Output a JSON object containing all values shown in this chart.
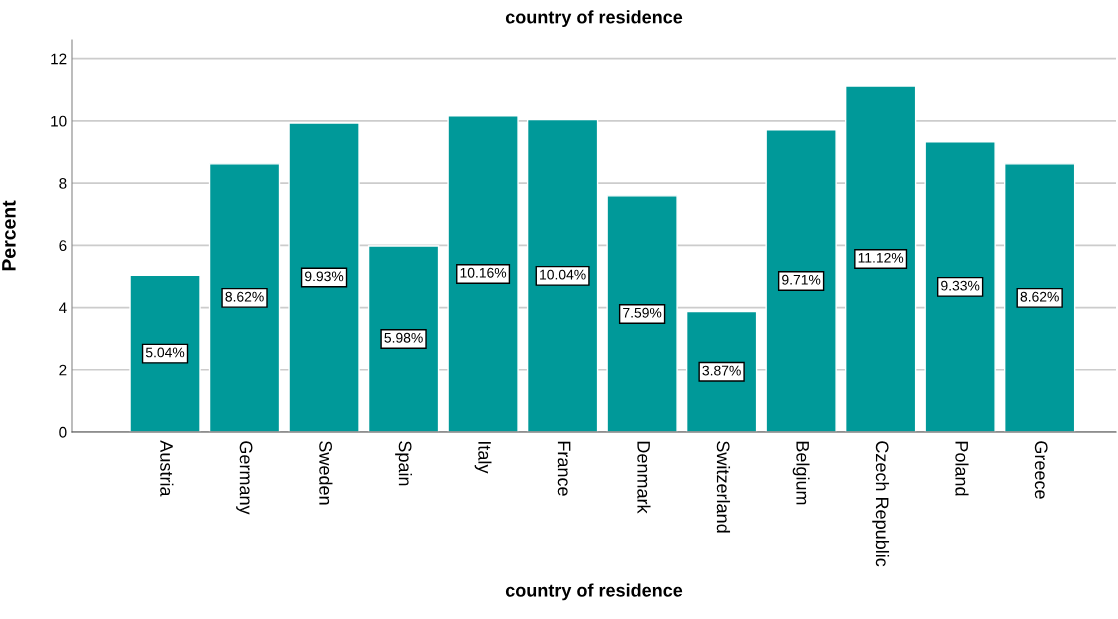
{
  "chart_data": {
    "type": "bar",
    "title": "country of residence",
    "xlabel": "country of residence",
    "ylabel": "Percent",
    "categories": [
      "Austria",
      "Germany",
      "Sweden",
      "Spain",
      "Italy",
      "France",
      "Denmark",
      "Switzerland",
      "Belgium",
      "Czech Republic",
      "Poland",
      "Greece"
    ],
    "values": [
      5.04,
      8.62,
      9.93,
      5.98,
      10.16,
      10.04,
      7.59,
      3.87,
      9.71,
      11.12,
      9.33,
      8.62
    ],
    "value_labels": [
      "5.04%",
      "8.62%",
      "9.93%",
      "5.98%",
      "10.16%",
      "10.04%",
      "7.59%",
      "3.87%",
      "9.71%",
      "11.12%",
      "9.33%",
      "8.62%"
    ],
    "color": "#009999",
    "ylim": [
      0,
      12.6
    ],
    "yticks": [
      0,
      2,
      4,
      6,
      8,
      10,
      12
    ],
    "grid": "y",
    "legend": false
  }
}
